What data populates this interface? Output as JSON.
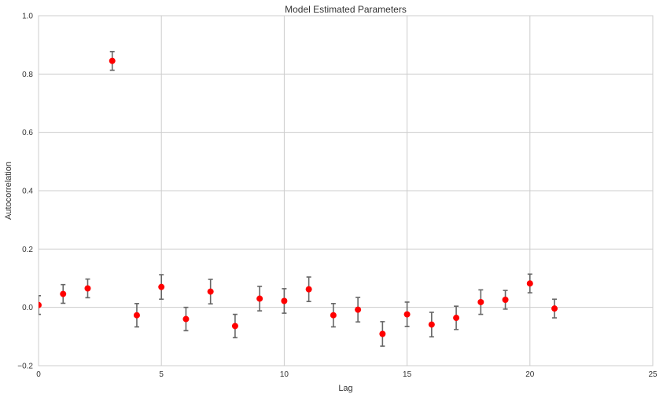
{
  "chart_data": {
    "type": "scatter",
    "title": "Model Estimated Parameters",
    "xlabel": "Lag",
    "ylabel": "Autocorrelation",
    "xlim": [
      0,
      25
    ],
    "ylim": [
      -0.2,
      1.0
    ],
    "xticks": [
      0,
      5,
      10,
      15,
      20,
      25
    ],
    "yticks": [
      -0.2,
      0.0,
      0.2,
      0.4,
      0.6,
      0.8,
      1.0
    ],
    "xtick_labels": [
      "0",
      "5",
      "10",
      "15",
      "20",
      "25"
    ],
    "ytick_labels": [
      "−0.2",
      "0.0",
      "0.2",
      "0.4",
      "0.6",
      "0.8",
      "1.0"
    ],
    "grid": true,
    "series": [
      {
        "x": [
          0,
          1,
          2,
          3,
          4,
          5,
          6,
          7,
          8,
          9,
          10,
          11,
          12,
          13,
          14,
          15,
          16,
          17,
          18,
          19,
          20,
          21
        ],
        "y": [
          0.008,
          0.046,
          0.065,
          0.845,
          -0.027,
          0.07,
          -0.04,
          0.054,
          -0.064,
          0.03,
          0.022,
          0.062,
          -0.027,
          -0.008,
          -0.091,
          -0.024,
          -0.059,
          -0.036,
          0.018,
          0.026,
          0.082,
          -0.004
        ],
        "err_low": [
          -0.024,
          0.014,
          0.033,
          0.813,
          -0.067,
          0.028,
          -0.08,
          0.012,
          -0.104,
          -0.012,
          -0.02,
          0.02,
          -0.067,
          -0.05,
          -0.133,
          -0.066,
          -0.101,
          -0.076,
          -0.024,
          -0.006,
          0.05,
          -0.036
        ],
        "err_high": [
          0.04,
          0.078,
          0.097,
          0.877,
          0.013,
          0.112,
          0.0,
          0.096,
          -0.024,
          0.072,
          0.064,
          0.104,
          0.013,
          0.034,
          -0.049,
          0.018,
          -0.017,
          0.004,
          0.06,
          0.058,
          0.114,
          0.028
        ],
        "color": "#ff0000",
        "error_color": "#666666"
      }
    ],
    "colors": {
      "background": "#ffffff",
      "grid": "#cccccc",
      "frame": "#cccccc",
      "text": "#333333"
    }
  }
}
